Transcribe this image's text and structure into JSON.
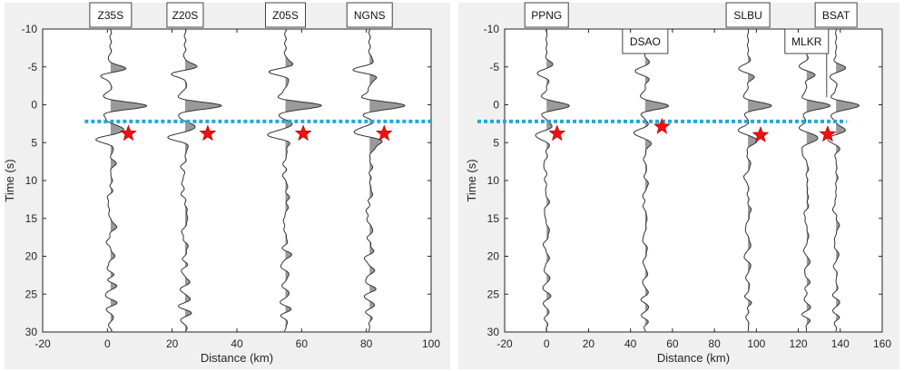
{
  "chart_data": [
    {
      "type": "line",
      "title": "",
      "xlabel": "Distance (km)",
      "ylabel": "Time (s)",
      "xlim": [
        -20,
        100
      ],
      "ylim": [
        -10,
        30
      ],
      "y_reversed": true,
      "xticks": [
        -20,
        0,
        20,
        40,
        60,
        80,
        100
      ],
      "yticks": [
        -10,
        -5,
        0,
        5,
        10,
        15,
        20,
        25,
        30
      ],
      "grid": false,
      "stations": [
        {
          "name": "Z35S",
          "distance": 1,
          "pick_time": 3.8,
          "star_distance": 6.5
        },
        {
          "name": "Z20S",
          "distance": 24,
          "pick_time": 3.8,
          "star_distance": 31
        },
        {
          "name": "Z05S",
          "distance": 55,
          "pick_time": 3.8,
          "star_distance": 60.5
        },
        {
          "name": "NGNS",
          "distance": 81,
          "pick_time": 3.8,
          "star_distance": 85.5
        }
      ],
      "reference_line_time": 2.2
    },
    {
      "type": "line",
      "title": "",
      "xlabel": "Distance (km)",
      "ylabel": "Time (s)",
      "xlim": [
        -20,
        160
      ],
      "ylim": [
        -10,
        30
      ],
      "y_reversed": true,
      "xticks": [
        -20,
        0,
        20,
        40,
        60,
        80,
        100,
        120,
        140,
        160
      ],
      "yticks": [
        -10,
        -5,
        0,
        5,
        10,
        15,
        20,
        25,
        30
      ],
      "grid": false,
      "stations": [
        {
          "name": "PPNG",
          "distance": 0,
          "pick_time": 3.8,
          "star_distance": 5
        },
        {
          "name": "DSAO",
          "distance": 47,
          "pick_time": 2.9,
          "star_distance": 55
        },
        {
          "name": "SLBU",
          "distance": 96,
          "pick_time": 4.0,
          "star_distance": 102
        },
        {
          "name": "MLKR",
          "distance": 124,
          "pick_time": 3.9,
          "star_distance": 134
        },
        {
          "name": "BSAT",
          "distance": 138,
          "pick_time": 3.9,
          "star_distance": 134
        }
      ],
      "reference_line_time": 2.2
    }
  ],
  "colors": {
    "figure_bg": "#f0f0f0",
    "axes_bg": "#ffffff",
    "trace": "#333333",
    "trace_fill": "#9a9a9a",
    "star": "#ee1111",
    "reference_line": "#22a8e0"
  }
}
